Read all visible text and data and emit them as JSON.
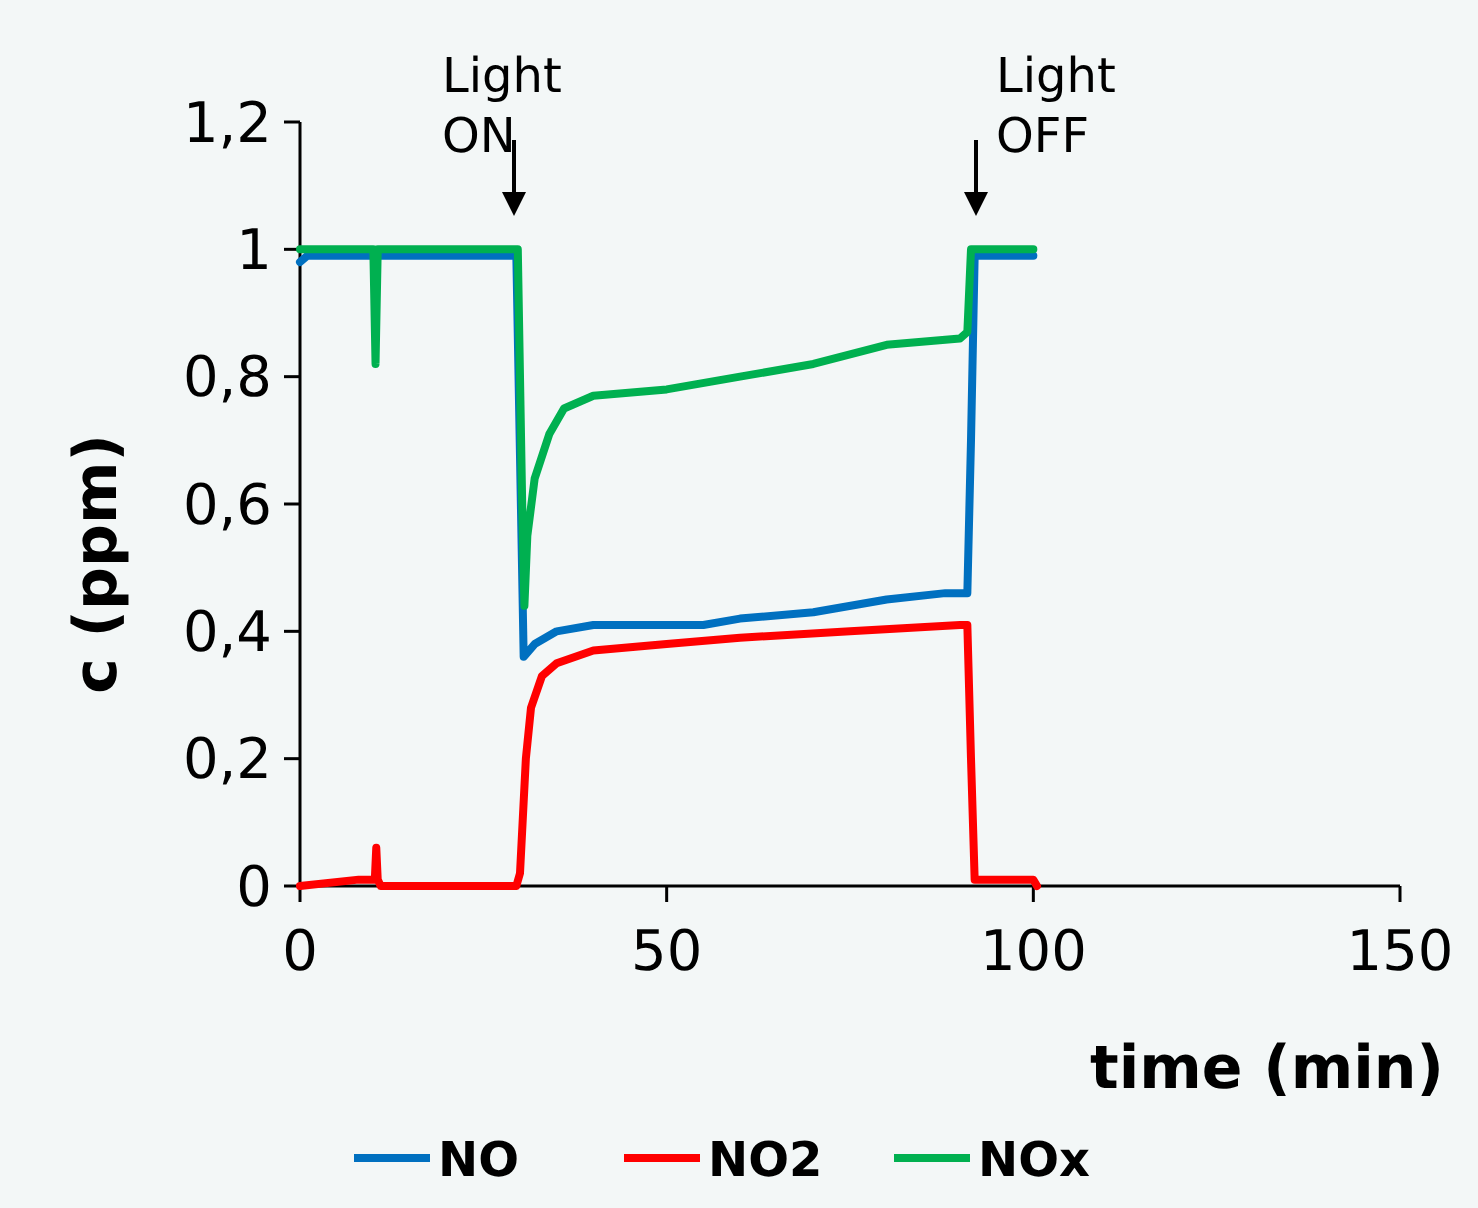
{
  "chart_data": {
    "type": "line",
    "xlabel": "time (min)",
    "ylabel": "c (ppm)",
    "xlim": [
      0,
      150
    ],
    "xticks": [
      0,
      50,
      100,
      150
    ],
    "ylim": [
      0,
      1.2
    ],
    "yticks": [
      0,
      {
        "value": 0.2,
        "label": "0,2"
      },
      {
        "value": 0.4,
        "label": "0,4"
      },
      {
        "value": 0.6,
        "label": "0,6"
      },
      {
        "value": 0.8,
        "label": "0,8"
      },
      1,
      {
        "value": 1.2,
        "label": "1,2"
      }
    ],
    "grid": false,
    "legend": "bottom",
    "marker": "none",
    "line_style": "solid",
    "annotations": [
      "Light ON",
      "Light OFF"
    ],
    "series": [
      {
        "name": "NO",
        "color": "#0070c0",
        "x": [
          0,
          1,
          29.5,
          30.5,
          32,
          35,
          40,
          55,
          60,
          70,
          80,
          88,
          91,
          91.5,
          92,
          100
        ],
        "values": [
          0.98,
          0.99,
          0.99,
          0.36,
          0.38,
          0.4,
          0.41,
          0.41,
          0.42,
          0.43,
          0.45,
          0.46,
          0.46,
          0.7,
          0.99,
          0.99
        ]
      },
      {
        "name": "NO2",
        "color": "#ff0000",
        "x": [
          0,
          8,
          10.2,
          10.4,
          10.6,
          11,
          29.5,
          30,
          30.8,
          31.5,
          33,
          35,
          40,
          50,
          60,
          75,
          90,
          91,
          91.5,
          92,
          100,
          100.5
        ],
        "values": [
          0,
          0.01,
          0.01,
          0.06,
          0.01,
          0,
          0,
          0.02,
          0.2,
          0.28,
          0.33,
          0.35,
          0.37,
          0.38,
          0.39,
          0.4,
          0.41,
          0.41,
          0.2,
          0.01,
          0.01,
          0
        ]
      },
      {
        "name": "NOx",
        "color": "#00b050",
        "x": [
          0,
          10,
          10.3,
          10.6,
          29.7,
          30.3,
          30.6,
          31,
          32,
          34,
          36,
          40,
          50,
          60,
          70,
          80,
          90,
          91,
          91.5,
          100
        ],
        "values": [
          1,
          1,
          0.82,
          1,
          1,
          0.6,
          0.44,
          0.55,
          0.64,
          0.71,
          0.75,
          0.77,
          0.78,
          0.8,
          0.82,
          0.85,
          0.86,
          0.87,
          1,
          1
        ]
      }
    ]
  }
}
